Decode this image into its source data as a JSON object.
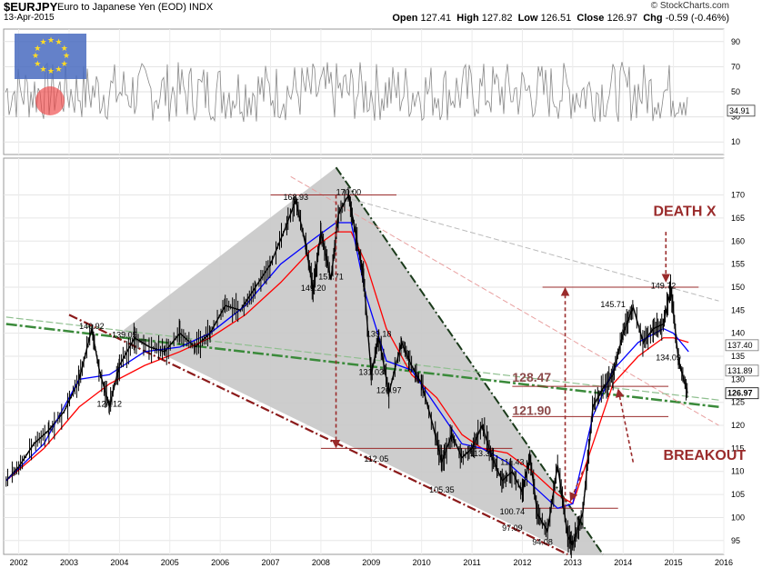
{
  "header": {
    "symbol": "$EURJPY",
    "name": "Euro to Japanese Yen (EOD) INDX",
    "date": "13-Apr-2015",
    "brand": "© StockCharts.com",
    "open_label": "Open",
    "open": "127.41",
    "high_label": "High",
    "high": "127.82",
    "low_label": "Low",
    "low": "126.51",
    "close_label": "Close",
    "close": "126.97",
    "chg_label": "Chg",
    "chg": "-0.59 (-0.46%)"
  },
  "chart_data": [
    {
      "type": "line",
      "panel": "RSI indicator",
      "ylim": [
        0,
        100
      ],
      "y_ticks": [
        10,
        30,
        50,
        70,
        90
      ],
      "last_value_label": "34.91",
      "grid": true
    },
    {
      "type": "line",
      "panel": "price",
      "title": "$EURJPY Euro to Japanese Yen (EOD) INDX",
      "x_ticks": [
        "2002",
        "2003",
        "2004",
        "2005",
        "2006",
        "2007",
        "2008",
        "2009",
        "2010",
        "2011",
        "2012",
        "2013",
        "2014",
        "2015",
        "2016"
      ],
      "y_ticks": [
        95,
        100,
        105,
        110,
        115,
        120,
        125,
        130,
        135,
        140,
        145,
        150,
        155,
        160,
        165,
        170
      ],
      "ylim": [
        92,
        178
      ],
      "xlim": [
        2001.7,
        2016.0
      ],
      "grid": true,
      "series": [
        {
          "color": "#000000",
          "x": [
            2001.75,
            2002.0,
            2002.3,
            2002.6,
            2002.9,
            2003.2,
            2003.45,
            2003.6,
            2003.8,
            2004.0,
            2004.3,
            2004.6,
            2004.9,
            2005.2,
            2005.5,
            2005.8,
            2006.1,
            2006.4,
            2006.7,
            2007.0,
            2007.3,
            2007.5,
            2007.7,
            2007.85,
            2008.0,
            2008.2,
            2008.35,
            2008.55,
            2008.7,
            2008.85,
            2009.0,
            2009.15,
            2009.35,
            2009.6,
            2009.8,
            2010.0,
            2010.2,
            2010.4,
            2010.6,
            2010.8,
            2011.0,
            2011.2,
            2011.4,
            2011.6,
            2011.8,
            2012.0,
            2012.15,
            2012.3,
            2012.5,
            2012.7,
            2012.9,
            2013.0,
            2013.2,
            2013.4,
            2013.6,
            2013.8,
            2014.0,
            2014.2,
            2014.4,
            2014.6,
            2014.8,
            2014.95,
            2015.1,
            2015.28
          ],
          "y": [
            108,
            111,
            116,
            119,
            123,
            130,
            140.9,
            132,
            124.1,
            133,
            139,
            137,
            136,
            140,
            137,
            140,
            146,
            145,
            150,
            155,
            163,
            168.9,
            159,
            149.2,
            162,
            151.7,
            166,
            170,
            161,
            152,
            131,
            139.2,
            127,
            138,
            133,
            129,
            121,
            112.1,
            118,
            113,
            115,
            120,
            113,
            108,
            110,
            105.4,
            113.3,
            100.7,
            97.1,
            111.4,
            96,
            94.1,
            101,
            124,
            128,
            131,
            140,
            145.7,
            138,
            141,
            142,
            149.7,
            134.1,
            127
          ]
        },
        {
          "color": "#ff0000",
          "x": [
            2001.75,
            2002.5,
            2003.2,
            2003.8,
            2004.5,
            2005.2,
            2005.8,
            2006.5,
            2007.2,
            2007.8,
            2008.3,
            2008.6,
            2008.9,
            2009.3,
            2009.8,
            2010.3,
            2010.8,
            2011.2,
            2011.7,
            2012.2,
            2012.7,
            2013.0,
            2013.4,
            2013.8,
            2014.3,
            2014.8,
            2015.0,
            2015.3
          ],
          "y": [
            108,
            115,
            124,
            129,
            133,
            136,
            139,
            144,
            151,
            158,
            162,
            162,
            155,
            141,
            131,
            126,
            118,
            115,
            114,
            110,
            105,
            103,
            116,
            129,
            135,
            139,
            139,
            138
          ]
        },
        {
          "color": "#0000ff",
          "x": [
            2001.75,
            2002.5,
            2003.2,
            2003.8,
            2004.5,
            2005.2,
            2005.8,
            2006.5,
            2007.2,
            2007.8,
            2008.3,
            2008.6,
            2008.9,
            2009.3,
            2009.8,
            2010.3,
            2010.8,
            2011.2,
            2011.7,
            2012.2,
            2012.7,
            2013.0,
            2013.4,
            2013.8,
            2014.3,
            2014.8,
            2015.0,
            2015.3
          ],
          "y": [
            108,
            116,
            130,
            131,
            136,
            137,
            140,
            146,
            155,
            160,
            164,
            164,
            148,
            134,
            132,
            124,
            116,
            115,
            112,
            107,
            102,
            103,
            122,
            132,
            138,
            141,
            140,
            136
          ]
        }
      ],
      "annotations": [
        {
          "label": "140.92",
          "x": 2003.45,
          "y": 140.9
        },
        {
          "label": "139.05",
          "x": 2004.1,
          "y": 139.0
        },
        {
          "label": "124.12",
          "x": 2003.8,
          "y": 124.1
        },
        {
          "label": "168.93",
          "x": 2007.5,
          "y": 168.9
        },
        {
          "label": "170.00",
          "x": 2008.55,
          "y": 170.0
        },
        {
          "label": "149.20",
          "x": 2007.85,
          "y": 149.2
        },
        {
          "label": "151.71",
          "x": 2008.2,
          "y": 151.7
        },
        {
          "label": "139.18",
          "x": 2009.15,
          "y": 139.2
        },
        {
          "label": "131.03",
          "x": 2009.0,
          "y": 131.0
        },
        {
          "label": "126.97",
          "x": 2009.35,
          "y": 127.0
        },
        {
          "label": "112.05",
          "x": 2009.1,
          "y": 112.1
        },
        {
          "label": "105.35",
          "x": 2010.4,
          "y": 105.4
        },
        {
          "label": "113.33",
          "x": 2011.2,
          "y": 113.3
        },
        {
          "label": "111.43",
          "x": 2011.8,
          "y": 111.4
        },
        {
          "label": "100.74",
          "x": 2011.8,
          "y": 100.7
        },
        {
          "label": "97.09",
          "x": 2011.8,
          "y": 97.1
        },
        {
          "label": "94.08",
          "x": 2012.4,
          "y": 94.1
        },
        {
          "label": "145.71",
          "x": 2013.8,
          "y": 145.7
        },
        {
          "label": "149.72",
          "x": 2014.8,
          "y": 149.7
        },
        {
          "label": "134.09",
          "x": 2014.9,
          "y": 134.1
        },
        {
          "label": "128.47",
          "x": 2011.8,
          "y": 129.5
        },
        {
          "label": "121.90",
          "x": 2011.8,
          "y": 122.3
        },
        {
          "label": "DEATH X",
          "x": 2014.6,
          "y": 165.5
        },
        {
          "label": "BREAKOUT",
          "x": 2014.8,
          "y": 112.5
        }
      ],
      "right_labels": [
        "137.40",
        "131.89",
        "126.97"
      ]
    }
  ],
  "colors": {
    "triangle": "#c8c8c8",
    "dark_red": "#8b1a1a",
    "annot_red": "#9a2b2b",
    "green": "#3a8a3a"
  }
}
